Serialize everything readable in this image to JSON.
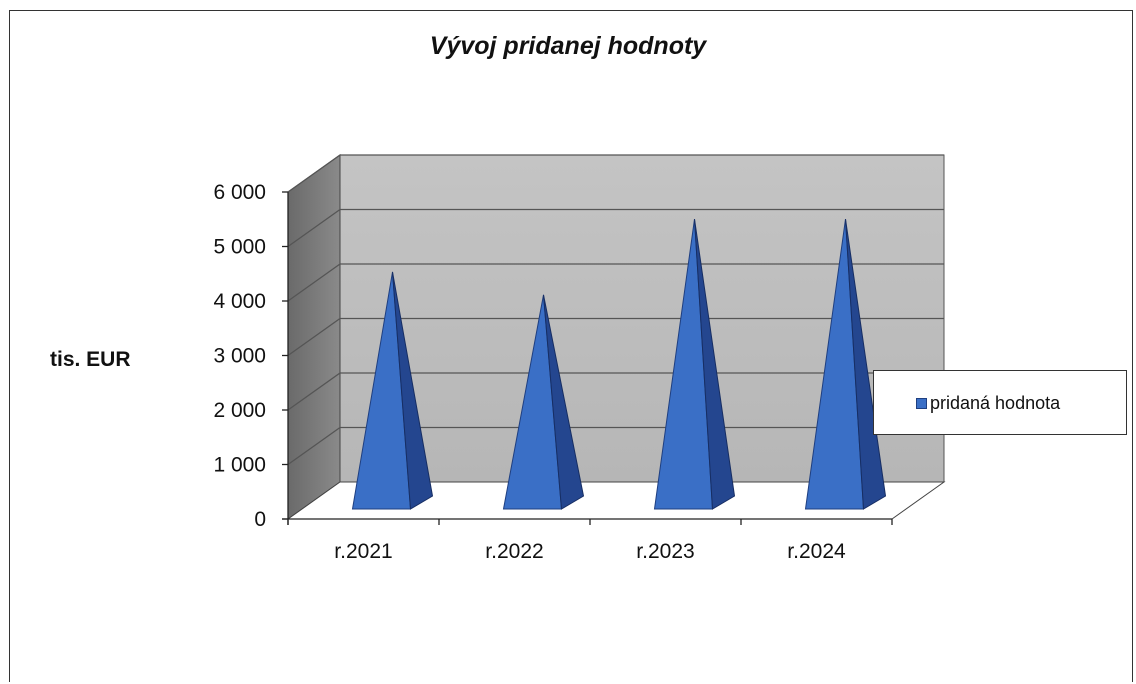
{
  "chart_data": {
    "type": "bar",
    "shape": "3d-pyramid",
    "title": "Vývoj pridanej hodnoty",
    "xlabel": "",
    "ylabel": "tis. EUR",
    "categories": [
      "r.2021",
      "r.2022",
      "r.2023",
      "r.2024"
    ],
    "series": [
      {
        "name": "pridaná hodnota",
        "values": [
          4450,
          4030,
          5420,
          5420
        ],
        "color": "#3a6fc6"
      }
    ],
    "ylim": [
      0,
      6000
    ],
    "yticks": [
      0,
      1000,
      2000,
      3000,
      4000,
      5000,
      6000
    ],
    "ytick_labels": [
      "0",
      "1 000",
      "2 000",
      "3 000",
      "4 000",
      "5 000",
      "6 000"
    ],
    "grid": true,
    "legend_position": "right"
  }
}
